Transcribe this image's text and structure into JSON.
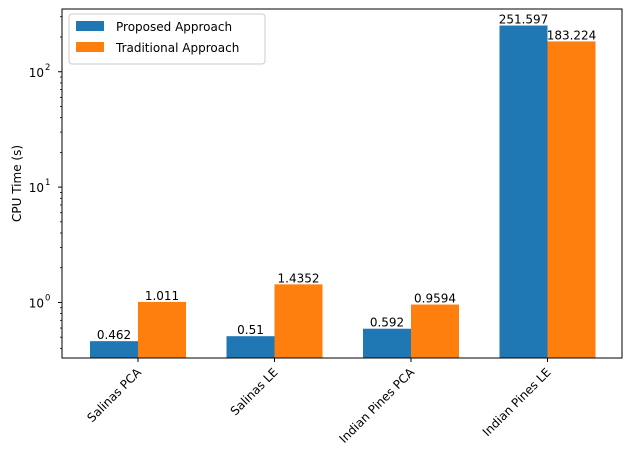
{
  "chart_data": {
    "type": "bar",
    "title": "",
    "xlabel": "",
    "ylabel": "CPU Time (s)",
    "yscale": "log",
    "ylim": [
      0.33,
      350
    ],
    "yticks": [
      1,
      10,
      100
    ],
    "ytick_labels": [
      "10",
      "10",
      "10"
    ],
    "ytick_exponents": [
      "0",
      "1",
      "2"
    ],
    "categories": [
      "Salinas PCA",
      "Salinas LE",
      "Indian Pines PCA",
      "Indian Pines LE"
    ],
    "series": [
      {
        "name": "Proposed Approach",
        "color": "#1f77b4",
        "values": [
          0.462,
          0.51,
          0.592,
          251.597
        ],
        "labels": [
          "0.462",
          "0.51",
          "0.592",
          "251.597"
        ]
      },
      {
        "name": "Traditional Approach",
        "color": "#ff7f0e",
        "values": [
          1.011,
          1.4352,
          0.9594,
          183.224
        ],
        "labels": [
          "1.011",
          "1.4352",
          "0.9594",
          "183.224"
        ]
      }
    ],
    "legend": "top-left",
    "grid": false,
    "xtick_rotation": 45
  }
}
